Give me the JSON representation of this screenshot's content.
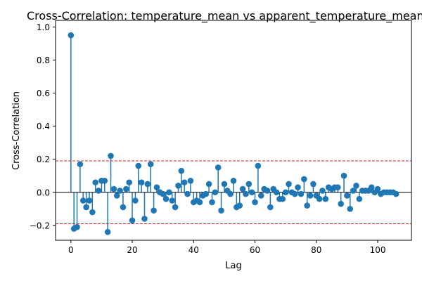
{
  "chart_data": {
    "type": "stem",
    "title": "Cross-Correlation: temperature_mean vs apparent_temperature_mean",
    "xlabel": "Lag",
    "ylabel": "Cross-Correlation",
    "xlim": [
      -5,
      111
    ],
    "ylim": [
      -0.29,
      1.04
    ],
    "xticks": [
      0,
      20,
      40,
      60,
      80,
      100
    ],
    "yticks": [
      -0.2,
      0.0,
      0.2,
      0.4,
      0.6,
      0.8,
      1.0
    ],
    "ytick_labels": [
      "−0.2",
      "0.0",
      "0.2",
      "0.4",
      "0.6",
      "0.8",
      "1.0"
    ],
    "confidence_bounds": [
      0.19,
      -0.19
    ],
    "grid": false,
    "legend": "none",
    "colors": {
      "series": "#1f77b4",
      "bounds": "#d62728",
      "baseline": "#000000"
    },
    "lags": [
      0,
      1,
      2,
      3,
      4,
      5,
      6,
      7,
      8,
      9,
      10,
      11,
      12,
      13,
      14,
      15,
      16,
      17,
      18,
      19,
      20,
      21,
      22,
      23,
      24,
      25,
      26,
      27,
      28,
      29,
      30,
      31,
      32,
      33,
      34,
      35,
      36,
      37,
      38,
      39,
      40,
      41,
      42,
      43,
      44,
      45,
      46,
      47,
      48,
      49,
      50,
      51,
      52,
      53,
      54,
      55,
      56,
      57,
      58,
      59,
      60,
      61,
      62,
      63,
      64,
      65,
      66,
      67,
      68,
      69,
      70,
      71,
      72,
      73,
      74,
      75,
      76,
      77,
      78,
      79,
      80,
      81,
      82,
      83,
      84,
      85,
      86,
      87,
      88,
      89,
      90,
      91,
      92,
      93,
      94,
      95,
      96,
      97,
      98,
      99,
      100,
      101,
      102,
      103,
      104,
      105,
      106
    ],
    "values": [
      0.95,
      -0.22,
      -0.21,
      0.17,
      -0.05,
      -0.09,
      -0.05,
      -0.12,
      0.06,
      0.01,
      0.07,
      0.07,
      -0.24,
      0.22,
      0.02,
      -0.02,
      0.01,
      -0.09,
      0.02,
      0.06,
      -0.17,
      -0.05,
      0.16,
      0.06,
      -0.16,
      0.05,
      0.17,
      -0.11,
      0.03,
      0.0,
      -0.01,
      -0.04,
      0.0,
      -0.05,
      -0.09,
      0.04,
      0.13,
      0.06,
      -0.01,
      0.07,
      -0.06,
      -0.05,
      -0.06,
      -0.02,
      -0.01,
      0.05,
      -0.06,
      0.0,
      0.15,
      -0.11,
      0.05,
      0.01,
      -0.01,
      0.07,
      -0.09,
      -0.08,
      0.02,
      -0.01,
      0.05,
      0.0,
      -0.06,
      0.16,
      -0.02,
      0.02,
      0.01,
      -0.09,
      0.02,
      0.0,
      -0.04,
      -0.04,
      0.0,
      0.05,
      0.0,
      -0.01,
      0.03,
      -0.01,
      0.08,
      -0.08,
      -0.02,
      0.05,
      -0.02,
      -0.04,
      0.01,
      -0.04,
      0.03,
      0.02,
      0.03,
      0.03,
      -0.07,
      0.1,
      -0.02,
      -0.1,
      0.01,
      0.04,
      -0.04,
      0.01,
      0.01,
      0.01,
      0.03,
      0.0,
      0.02,
      -0.01,
      0.0,
      0.0,
      0.0,
      0.0,
      -0.01
    ]
  }
}
